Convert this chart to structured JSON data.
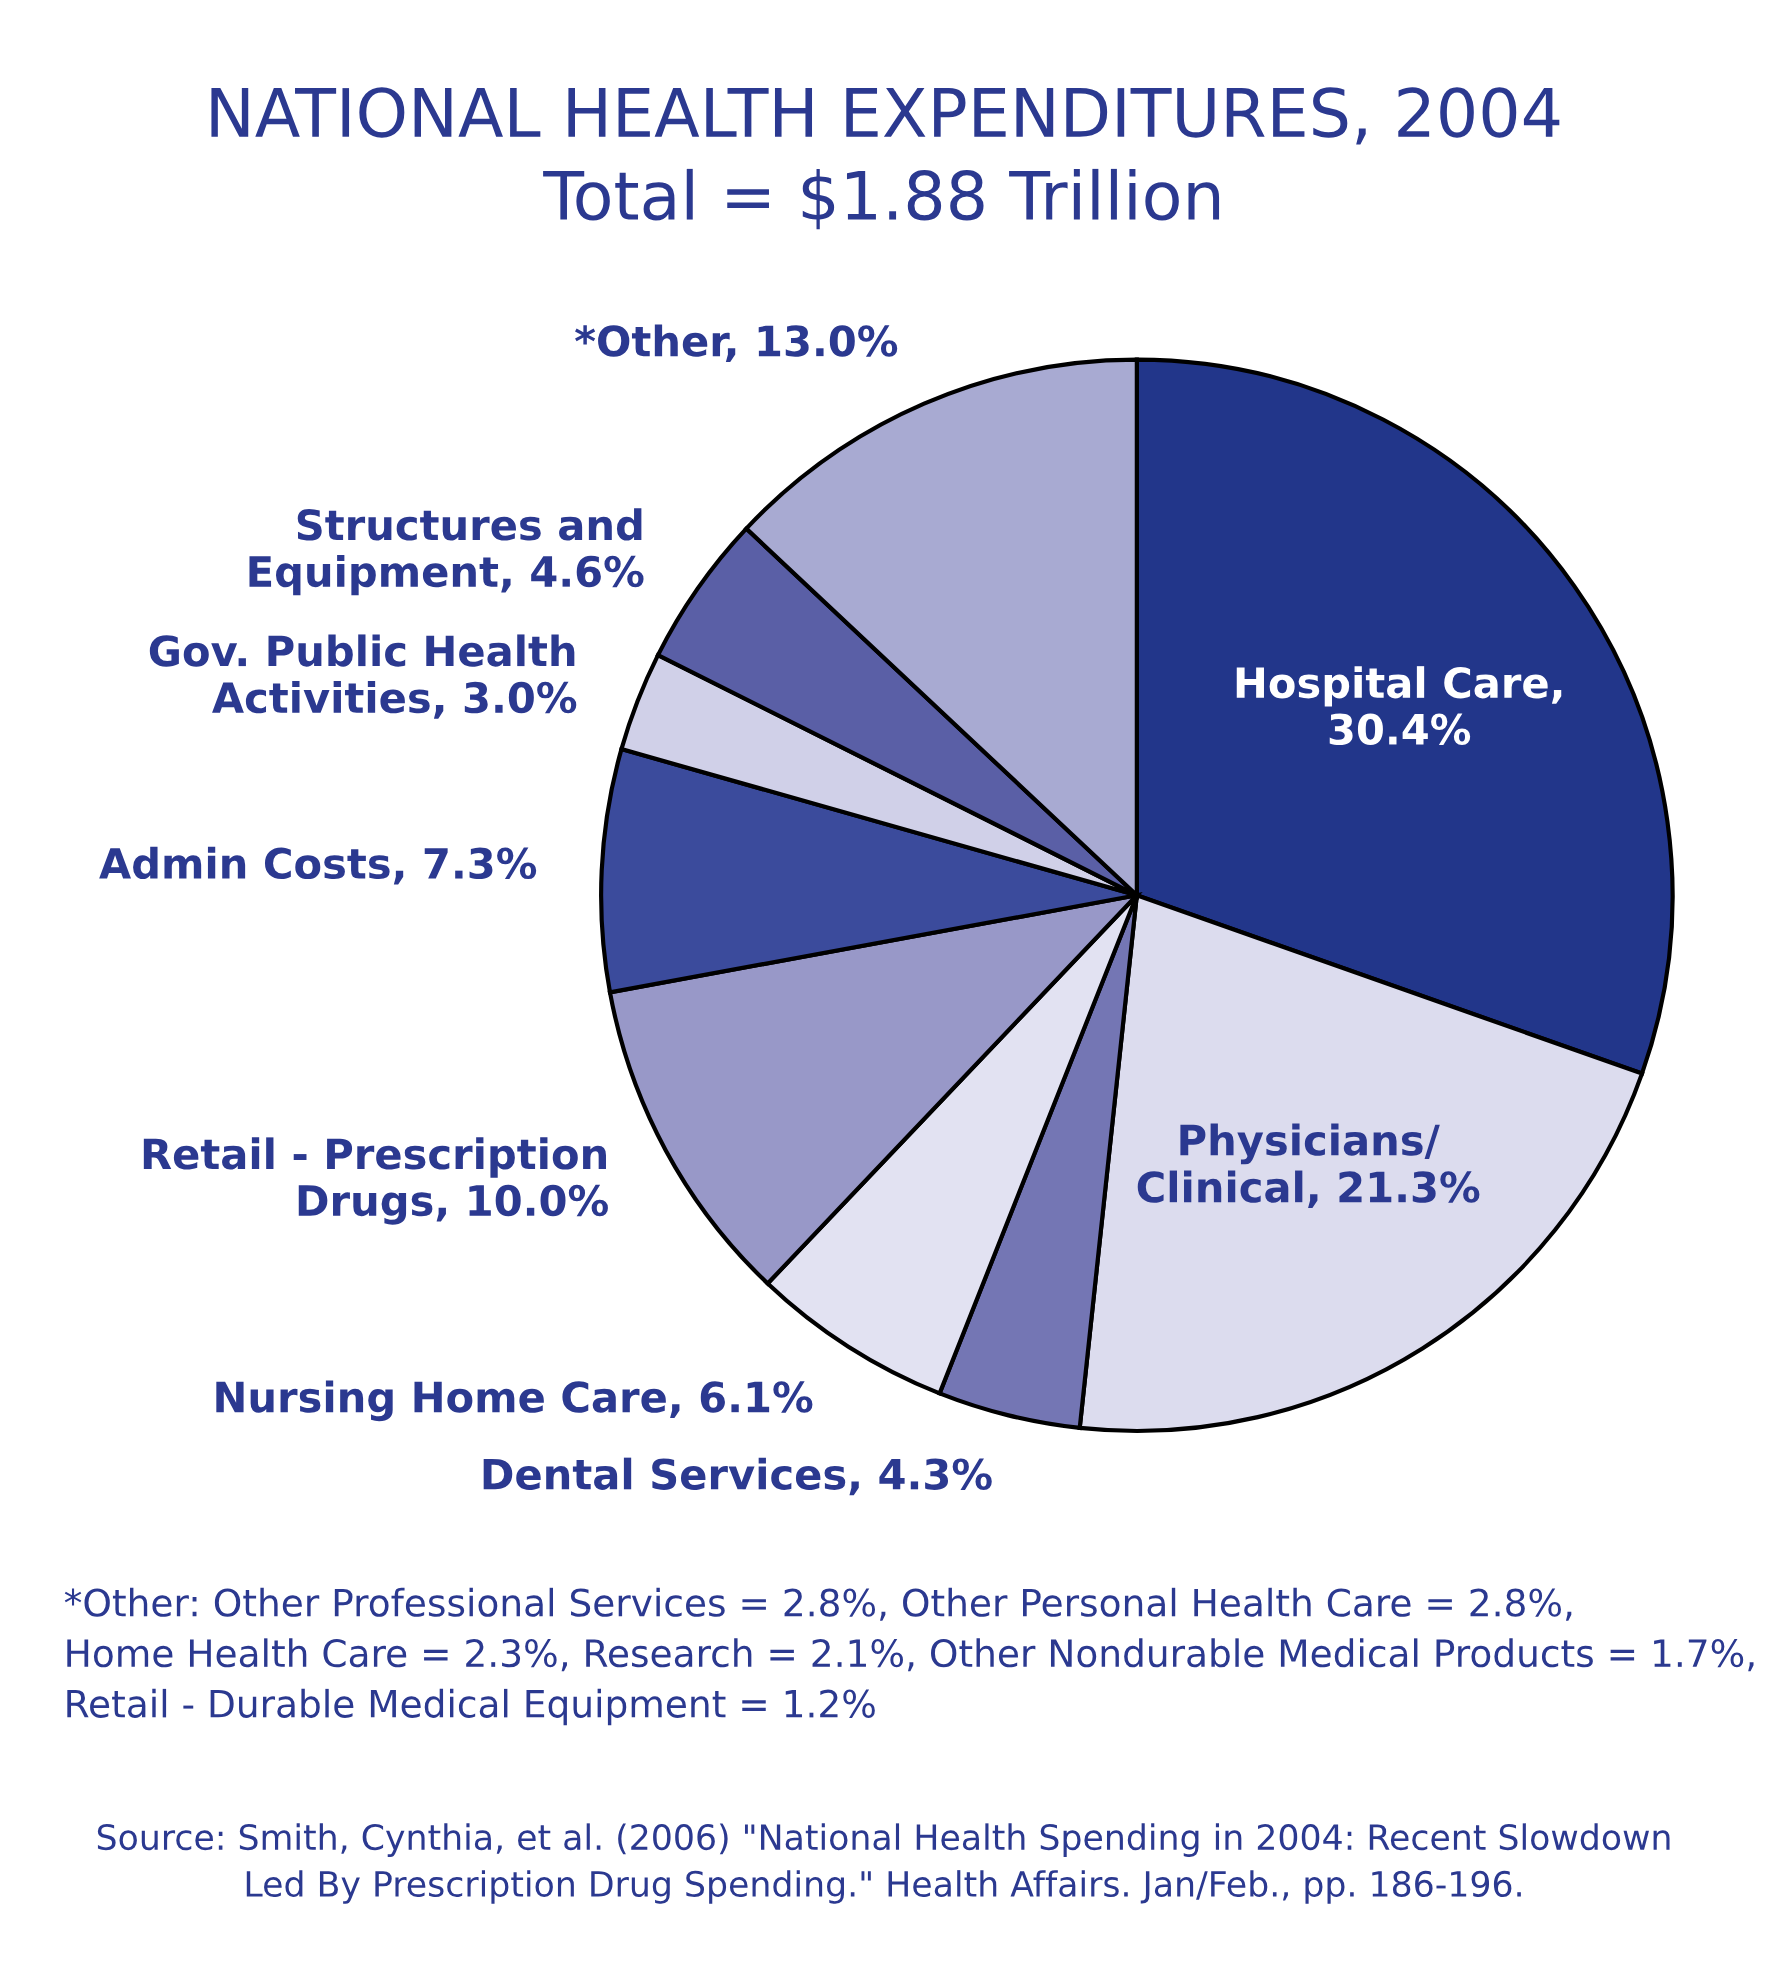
{
  "chart_data": {
    "type": "pie",
    "title": "NATIONAL HEALTH EXPENDITURES, 2004",
    "subtitle": "Total = $1.88 Trillion",
    "categories": [
      "Hospital Care,\n30.4%",
      "Physicians/\nClinical, 21.3%",
      "Dental Services, 4.3%",
      "Nursing Home Care, 6.1%",
      "Retail - Prescription\nDrugs, 10.0%",
      "Admin Costs, 7.3%",
      "Gov. Public Health\nActivities, 3.0%",
      "Structures and\nEquipment, 4.6%",
      "*Other, 13.0%"
    ],
    "values": [
      30.4,
      21.3,
      4.3,
      6.1,
      10.0,
      7.3,
      3.0,
      4.6,
      13.0
    ],
    "colors": [
      "#22368a",
      "#dcdcee",
      "#7476b4",
      "#e2e2f2",
      "#9898c8",
      "#3b4b9c",
      "#d0d0e8",
      "#5a5fa6",
      "#a8aad2"
    ],
    "legend": false,
    "annotations": [
      "*Other: Other Professional Services = 2.8%, Other Personal Health Care = 2.8%,\nHome Health Care = 2.3%, Research = 2.1%, Other Nondurable Medical Products = 1.7%,\nRetail - Durable Medical Equipment = 1.2%",
      "Source: Smith, Cynthia, et al. (2006) \"National Health Spending in 2004: Recent Slowdown\nLed By Prescription Drug Spending.\" Health Affairs. Jan/Feb., pp. 186-196."
    ]
  }
}
